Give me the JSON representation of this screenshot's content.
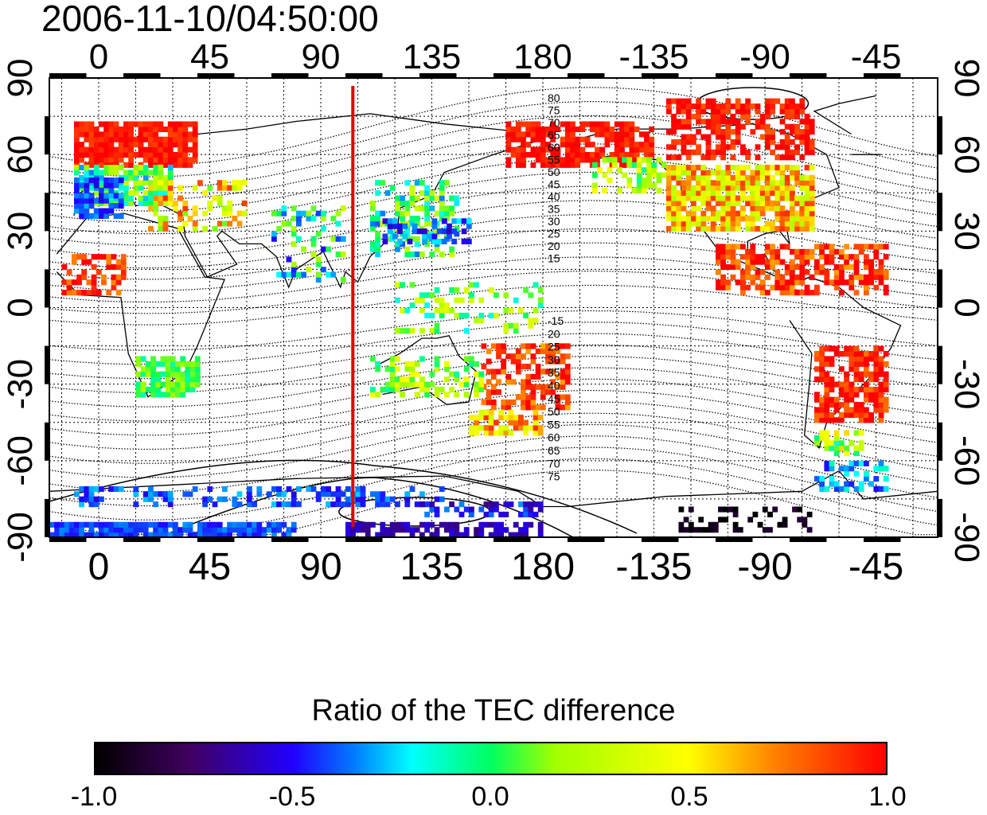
{
  "title": "2006-11-10/04:50:00",
  "axes": {
    "top_lon_labels": [
      "0",
      "45",
      "90",
      "135",
      "180",
      "-135",
      "-90",
      "-45"
    ],
    "bottom_lon_labels": [
      "0",
      "45",
      "90",
      "135",
      "180",
      "-135",
      "-90",
      "-45"
    ],
    "left_lat_labels": [
      "90",
      "60",
      "30",
      "0",
      "-30",
      "-60",
      "-90"
    ],
    "right_lat_labels": [
      "90",
      "60",
      "30",
      "0",
      "-30",
      "-60",
      "-90"
    ]
  },
  "contour_labels": {
    "north": [
      "80",
      "75",
      "70",
      "65",
      "60",
      "55",
      "50",
      "45",
      "40",
      "35",
      "30",
      "25",
      "20",
      "15"
    ],
    "south": [
      "-15",
      "20",
      "25",
      "30",
      "35",
      "40",
      "45",
      "50",
      "55",
      "60",
      "65",
      "70",
      "75"
    ]
  },
  "colorbar": {
    "title": "Ratio of the TEC difference",
    "ticks": [
      "-1.0",
      "-0.5",
      "0.0",
      "0.5",
      "1.0"
    ],
    "range": [
      -1.0,
      1.0
    ]
  },
  "marker": {
    "longitude": 103,
    "color": "#e00000"
  }
}
